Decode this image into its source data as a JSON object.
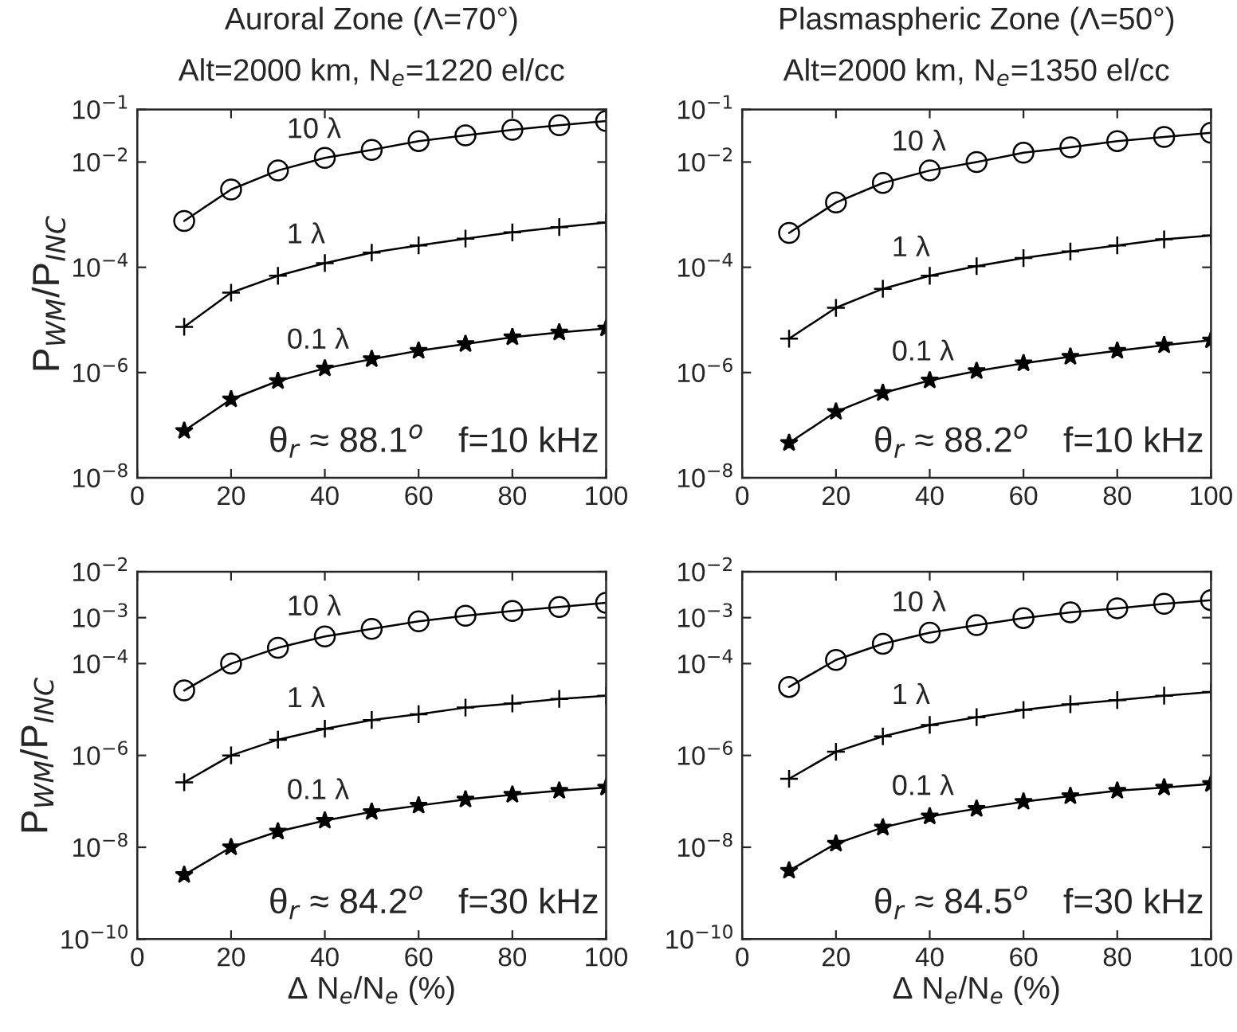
{
  "chart_data": [
    {
      "type": "line",
      "title": "Auroral Zone (Λ=70°)",
      "subtitle": "Alt=2000 km, N$_{e}$=1220 el/cc",
      "ylabel": "P$_{WM}$/P$_{INC}$",
      "log": "y",
      "grid": false,
      "legend": false,
      "xlim": [
        0,
        100
      ],
      "xticks": [
        0,
        20,
        40,
        60,
        80,
        100
      ],
      "ylim": [
        1e-08,
        0.1
      ],
      "yticks": [
        {
          "value": 1e-08,
          "label": "10$^{−8}$"
        },
        {
          "value": 1e-06,
          "label": "10$^{−6}$"
        },
        {
          "value": 0.0001,
          "label": "10$^{−4}$"
        },
        {
          "value": 0.01,
          "label": "10$^{−2}$"
        },
        {
          "value": 0.1,
          "label": "10$^{−1}$"
        }
      ],
      "x": [
        10,
        20,
        30,
        40,
        50,
        60,
        70,
        80,
        90,
        100
      ],
      "annotations": [
        "θ$_{r}$ ≈ 88.1$^{o}$",
        "f=10 kHz"
      ],
      "series": [
        {
          "name": "10 λ",
          "color": "#000000",
          "marker": "circle",
          "values": [
            0.00076,
            0.003,
            0.0069,
            0.012,
            0.017,
            0.025,
            0.032,
            0.041,
            0.05,
            0.06
          ]
        },
        {
          "name": "1 λ",
          "color": "#000000",
          "marker": "cross",
          "values": [
            7.4e-06,
            3.3e-05,
            6.9e-05,
            0.00012,
            0.00019,
            0.00026,
            0.00035,
            0.00046,
            0.00058,
            0.00071
          ]
        },
        {
          "name": "0.1 λ",
          "color": "#000000",
          "marker": "star",
          "values": [
            7.8e-08,
            3.1e-07,
            6.9e-07,
            1.2e-06,
            1.8e-06,
            2.6e-06,
            3.5e-06,
            4.7e-06,
            5.8e-06,
            6.9e-06
          ]
        }
      ]
    },
    {
      "type": "line",
      "title": "Plasmaspheric Zone (Λ=50°)",
      "subtitle": "Alt=2000 km, N$_{e}$=1350 el/cc",
      "log": "y",
      "grid": false,
      "legend": false,
      "xlim": [
        0,
        100
      ],
      "xticks": [
        0,
        20,
        40,
        60,
        80,
        100
      ],
      "ylim": [
        1e-08,
        0.1
      ],
      "yticks": [
        {
          "value": 1e-08,
          "label": "10$^{−8}$"
        },
        {
          "value": 1e-06,
          "label": "10$^{−6}$"
        },
        {
          "value": 0.0001,
          "label": "10$^{−4}$"
        },
        {
          "value": 0.01,
          "label": "10$^{−2}$"
        },
        {
          "value": 0.1,
          "label": "10$^{−1}$"
        }
      ],
      "x": [
        10,
        20,
        30,
        40,
        50,
        60,
        70,
        80,
        90,
        100
      ],
      "annotations": [
        "θ$_{r}$ ≈ 88.2$^{o}$",
        "f=10 kHz"
      ],
      "series": [
        {
          "name": "10 λ",
          "color": "#000000",
          "marker": "circle",
          "values": [
            0.00045,
            0.0017,
            0.004,
            0.0069,
            0.01,
            0.015,
            0.019,
            0.025,
            0.03,
            0.036
          ]
        },
        {
          "name": "1 λ",
          "color": "#000000",
          "marker": "cross",
          "values": [
            4.4e-06,
            1.7e-05,
            3.9e-05,
            6.9e-05,
            0.000105,
            0.00015,
            0.0002,
            0.00026,
            0.00034,
            0.0004
          ]
        },
        {
          "name": "0.1 λ",
          "color": "#000000",
          "marker": "star",
          "values": [
            4.6e-08,
            1.8e-07,
            4.1e-07,
            7.1e-07,
            1.07e-06,
            1.5e-06,
            2e-06,
            2.6e-06,
            3.3e-06,
            4.1e-06
          ]
        }
      ]
    },
    {
      "type": "line",
      "xlabel": "Δ N$_{e}$/N$_{e}$ (%)",
      "ylabel": "P$_{WM}$/P$_{INC}$",
      "log": "y",
      "grid": false,
      "legend": false,
      "xlim": [
        0,
        100
      ],
      "xticks": [
        0,
        20,
        40,
        60,
        80,
        100
      ],
      "ylim": [
        1e-10,
        0.01
      ],
      "yticks": [
        {
          "value": 1e-10,
          "label": "10$^{−10}$"
        },
        {
          "value": 1e-08,
          "label": "10$^{−8}$"
        },
        {
          "value": 1e-06,
          "label": "10$^{−6}$"
        },
        {
          "value": 0.0001,
          "label": "10$^{−4}$"
        },
        {
          "value": 0.001,
          "label": "10$^{−3}$"
        },
        {
          "value": 0.01,
          "label": "10$^{−2}$"
        }
      ],
      "x": [
        10,
        20,
        30,
        40,
        50,
        60,
        70,
        80,
        90,
        100
      ],
      "annotations": [
        "θ$_{r}$ ≈ 84.2$^{o}$",
        "f=30 kHz"
      ],
      "series": [
        {
          "name": "10 λ",
          "color": "#000000",
          "marker": "circle",
          "values": [
            2.6e-05,
            0.0001,
            0.00022,
            0.00039,
            0.00057,
            0.00083,
            0.0011,
            0.0014,
            0.0017,
            0.0021
          ]
        },
        {
          "name": "1 λ",
          "color": "#000000",
          "marker": "cross",
          "values": [
            2.6e-07,
            1e-06,
            2.2e-06,
            3.8e-06,
            5.9e-06,
            7.9e-06,
            1.1e-05,
            1.35e-05,
            1.7e-05,
            2e-05
          ]
        },
        {
          "name": "0.1 λ",
          "color": "#000000",
          "marker": "star",
          "values": [
            2.5e-09,
            1e-08,
            2.2e-08,
            3.8e-08,
            5.9e-08,
            8.1e-08,
            1.1e-07,
            1.4e-07,
            1.7e-07,
            2e-07
          ]
        }
      ]
    },
    {
      "type": "line",
      "xlabel": "Δ N$_{e}$/N$_{e}$ (%)",
      "log": "y",
      "grid": false,
      "legend": false,
      "xlim": [
        0,
        100
      ],
      "xticks": [
        0,
        20,
        40,
        60,
        80,
        100
      ],
      "ylim": [
        1e-10,
        0.01
      ],
      "yticks": [
        {
          "value": 1e-10,
          "label": "10$^{−10}$"
        },
        {
          "value": 1e-08,
          "label": "10$^{−8}$"
        },
        {
          "value": 1e-06,
          "label": "10$^{−6}$"
        },
        {
          "value": 0.0001,
          "label": "10$^{−4}$"
        },
        {
          "value": 0.001,
          "label": "10$^{−3}$"
        },
        {
          "value": 0.01,
          "label": "10$^{−2}$"
        }
      ],
      "x": [
        10,
        20,
        30,
        40,
        50,
        60,
        70,
        80,
        90,
        100
      ],
      "annotations": [
        "θ$_{r}$ ≈ 84.5$^{o}$",
        "f=30 kHz"
      ],
      "series": [
        {
          "name": "10 λ",
          "color": "#000000",
          "marker": "circle",
          "values": [
            3.1e-05,
            0.00012,
            0.00027,
            0.00047,
            0.00069,
            0.00098,
            0.0013,
            0.0016,
            0.002,
            0.0024
          ]
        },
        {
          "name": "1 λ",
          "color": "#000000",
          "marker": "cross",
          "values": [
            3.1e-07,
            1.2e-06,
            2.6e-06,
            4.6e-06,
            6.8e-06,
            9.8e-06,
            1.3e-05,
            1.6e-05,
            2e-05,
            2.4e-05
          ]
        },
        {
          "name": "0.1 λ",
          "color": "#000000",
          "marker": "star",
          "values": [
            3.1e-09,
            1.2e-08,
            2.7e-08,
            4.7e-08,
            6.9e-08,
            9.8e-08,
            1.3e-07,
            1.7e-07,
            2e-07,
            2.4e-07
          ]
        }
      ]
    }
  ]
}
